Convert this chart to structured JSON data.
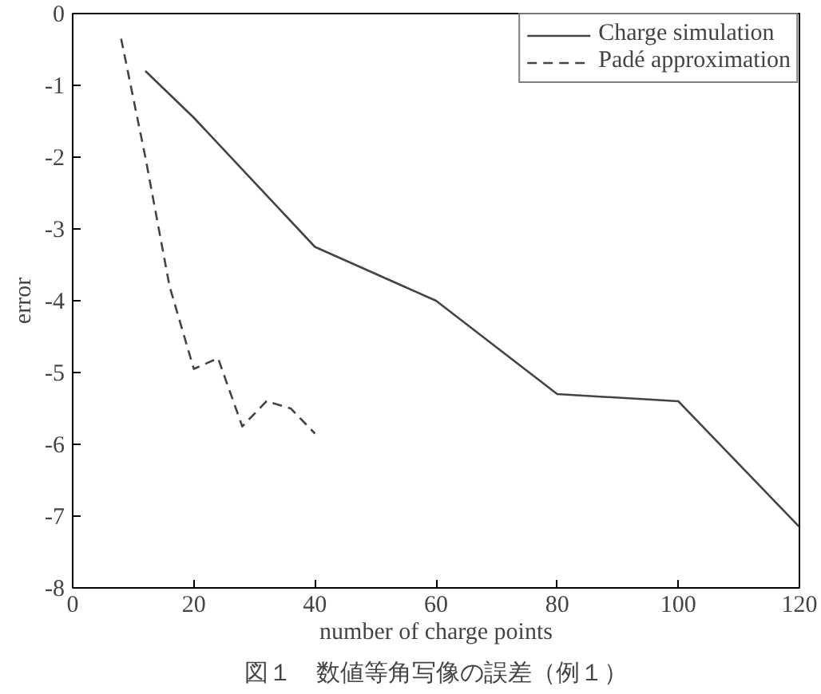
{
  "chart_data": {
    "type": "line",
    "xlabel": "number of charge points",
    "ylabel": "error",
    "xlim": [
      0,
      120
    ],
    "xticks": [
      0,
      20,
      40,
      60,
      80,
      100,
      120
    ],
    "ylim": [
      -8,
      0
    ],
    "yticks": [
      -8,
      -7,
      -6,
      -5,
      -4,
      -3,
      -2,
      -1,
      0
    ],
    "grid": false,
    "legend": "top right",
    "series": [
      {
        "name": "Charge simulation",
        "color": "#444444",
        "line_style": "solid",
        "x": [
          12,
          20,
          40,
          60,
          80,
          100,
          120
        ],
        "values": [
          -0.8,
          -1.45,
          -3.25,
          -4.0,
          -5.3,
          -5.4,
          -7.15
        ]
      },
      {
        "name": "Padé approximation",
        "color": "#444444",
        "line_style": "dashed",
        "x": [
          8,
          12,
          16,
          20,
          24,
          28,
          32,
          36,
          40
        ],
        "values": [
          -0.35,
          -2.0,
          -3.8,
          -4.95,
          -4.8,
          -5.75,
          -5.4,
          -5.5,
          -5.85
        ]
      }
    ],
    "annotations": [
      "図１　数値等角写像の誤差（例１）"
    ]
  }
}
